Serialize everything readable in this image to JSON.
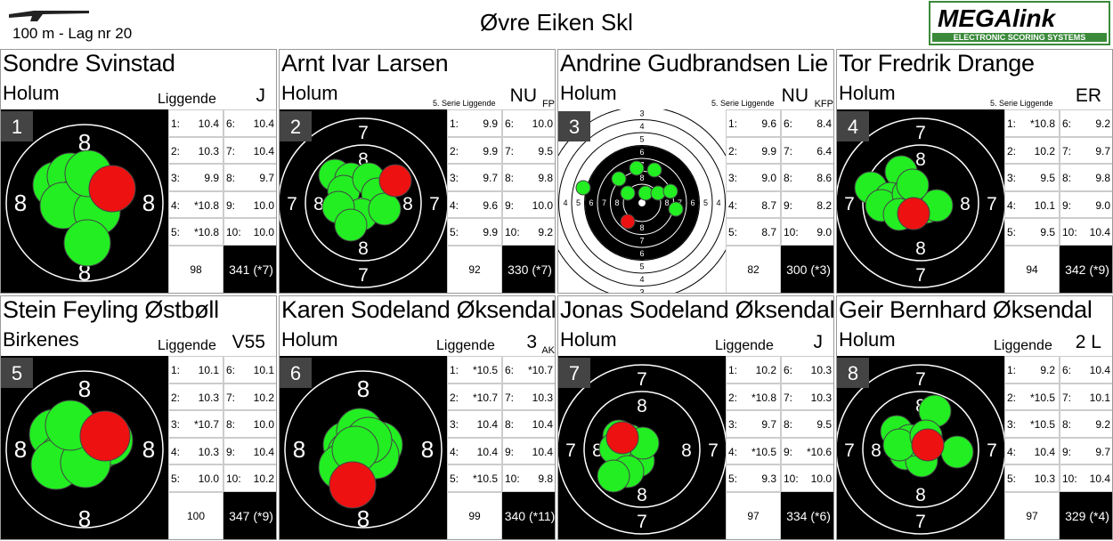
{
  "header": {
    "subtitle": "100 m - Lag nr 20",
    "title": "Øvre Eiken Skl",
    "logo": "MEGAlink",
    "logo_tagline": "ELECTRONIC SCORING SYSTEMS"
  },
  "shot_labels": [
    "1:",
    "2:",
    "3:",
    "4:",
    "5:",
    "6:",
    "7:",
    "8:",
    "9:",
    "10:"
  ],
  "cards": [
    {
      "lane": "1",
      "name": "Sondre Svinstad",
      "club": "Holum",
      "discipline": "Liggende",
      "class": "J",
      "shots": [
        "10.4",
        "10.3",
        "9.9",
        "*10.8",
        "*10.8",
        "10.4",
        "10.4",
        "9.7",
        "10.0",
        "10.0"
      ],
      "subtotal": "98",
      "total": "341 (*7)",
      "ring_labels": [
        "8",
        "8",
        "8",
        "8"
      ]
    },
    {
      "lane": "2",
      "name": "Arnt Ivar Larsen",
      "club": "Holum",
      "discipline": "5. Serie Liggende",
      "class": "NU",
      "class_sub": "FP",
      "shots": [
        "9.9",
        "9.9",
        "9.7",
        "9.6",
        "9.9",
        "10.0",
        "9.5",
        "9.8",
        "10.0",
        "9.2"
      ],
      "subtotal": "92",
      "total": "330 (*7)",
      "ring_labels": [
        "7",
        "8",
        "7",
        "8",
        "8",
        "7",
        "8",
        "7"
      ]
    },
    {
      "lane": "3",
      "name": "Andrine Gudbrandsen Lie",
      "club": "Holum",
      "discipline": "5. Serie Liggende",
      "class": "NU",
      "class_sub": "KFP",
      "shots": [
        "9.6",
        "9.9",
        "9.0",
        "8.7",
        "8.7",
        "8.4",
        "6.4",
        "8.6",
        "8.2",
        "9.0"
      ],
      "subtotal": "82",
      "total": "300 (*3)",
      "ring_labels": [
        "3",
        "4",
        "5",
        "6",
        "7",
        "8"
      ]
    },
    {
      "lane": "4",
      "name": "Tor Fredrik Drange",
      "club": "Holum",
      "discipline": "5. Serie Liggende",
      "class": "ER",
      "shots": [
        "*10.8",
        "10.2",
        "9.5",
        "10.1",
        "9.5",
        "9.2",
        "9.7",
        "9.8",
        "9.0",
        "10.4"
      ],
      "subtotal": "94",
      "total": "342 (*9)",
      "ring_labels": [
        "7",
        "8",
        "7",
        "8",
        "8",
        "7",
        "8",
        "7"
      ]
    },
    {
      "lane": "5",
      "name": "Stein Feyling Østbøll",
      "club": "Birkenes",
      "discipline": "Liggende",
      "class": "V55",
      "shots": [
        "10.1",
        "10.3",
        "*10.7",
        "10.3",
        "10.0",
        "10.1",
        "10.2",
        "10.0",
        "10.4",
        "10.2"
      ],
      "subtotal": "100",
      "total": "347 (*9)",
      "ring_labels": [
        "8",
        "8",
        "8",
        "8"
      ]
    },
    {
      "lane": "6",
      "name": "Karen Sodeland Øksendal",
      "club": "Holum",
      "discipline": "Liggende",
      "class": "3",
      "class_sub": "AK",
      "shots": [
        "*10.5",
        "*10.7",
        "10.4",
        "10.4",
        "*10.5",
        "*10.7",
        "10.3",
        "10.4",
        "10.4",
        "9.8"
      ],
      "subtotal": "99",
      "total": "340 (*11)",
      "ring_labels": [
        "8",
        "8",
        "8",
        "8"
      ]
    },
    {
      "lane": "7",
      "name": "Jonas Sodeland Øksendal",
      "club": "Holum",
      "discipline": "Liggende",
      "class": "J",
      "shots": [
        "10.2",
        "*10.8",
        "9.7",
        "*10.5",
        "9.3",
        "10.3",
        "10.3",
        "9.5",
        "*10.6",
        "10.0"
      ],
      "subtotal": "97",
      "total": "334 (*6)",
      "ring_labels": [
        "7",
        "8",
        "7",
        "8",
        "8",
        "7",
        "8",
        "7"
      ]
    },
    {
      "lane": "8",
      "name": "Geir Bernhard Øksendal",
      "club": "Holum",
      "discipline": "Liggende",
      "class": "2 L",
      "shots": [
        "9.2",
        "*10.5",
        "*10.5",
        "10.4",
        "10.3",
        "10.4",
        "10.1",
        "9.2",
        "9.7",
        "10.4"
      ],
      "subtotal": "97",
      "total": "329 (*4)",
      "ring_labels": [
        "7",
        "8",
        "7",
        "8",
        "8",
        "7",
        "8",
        "7"
      ]
    }
  ]
}
